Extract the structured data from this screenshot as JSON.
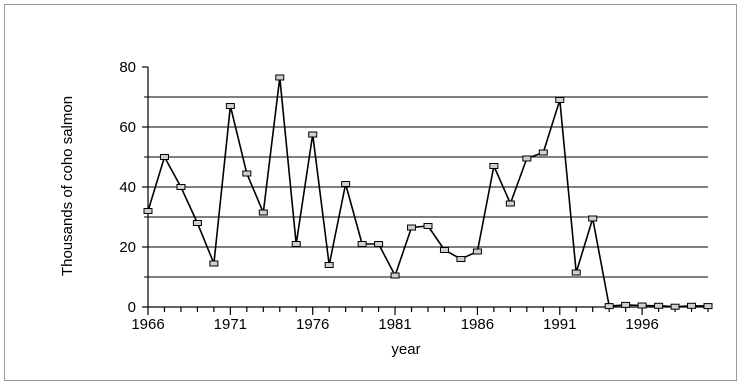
{
  "chart_data": {
    "type": "line",
    "title": "",
    "xlabel": "year",
    "ylabel": "Thousands of coho salmon",
    "xlim": [
      1966,
      2000
    ],
    "ylim": [
      0,
      80
    ],
    "x_ticks": [
      1966,
      1971,
      1976,
      1981,
      1986,
      1991,
      1996
    ],
    "y_ticks": [
      0,
      20,
      40,
      60,
      80
    ],
    "grid": "horizontal major and minor lines (every 10) from 10 to 70",
    "legend": "none",
    "colors": {
      "line": "#000000",
      "marker_fill": "#d0d0d0",
      "marker_edge": "#000000",
      "grid": "#000000",
      "frame": "#9a9a9a"
    },
    "series": [
      {
        "x": [
          1966,
          1967,
          1968,
          1969,
          1970,
          1971,
          1972,
          1973,
          1974,
          1975,
          1976,
          1977,
          1978,
          1979,
          1980,
          1981,
          1982,
          1983,
          1984,
          1985,
          1986,
          1987,
          1988,
          1989,
          1990,
          1991,
          1992,
          1993,
          1994,
          1995,
          1996,
          1997,
          1998,
          1999,
          2000
        ],
        "values": [
          32,
          50,
          40,
          28,
          14.5,
          67,
          44.5,
          31.5,
          76.5,
          21,
          57.5,
          14,
          41,
          21,
          21,
          10.5,
          26.5,
          27,
          19,
          16,
          18.5,
          47,
          34.5,
          49.5,
          51.5,
          69,
          11.5,
          29.5,
          0.3,
          0.7,
          0.5,
          0.4,
          0.1,
          0.4,
          0.3
        ]
      }
    ]
  }
}
